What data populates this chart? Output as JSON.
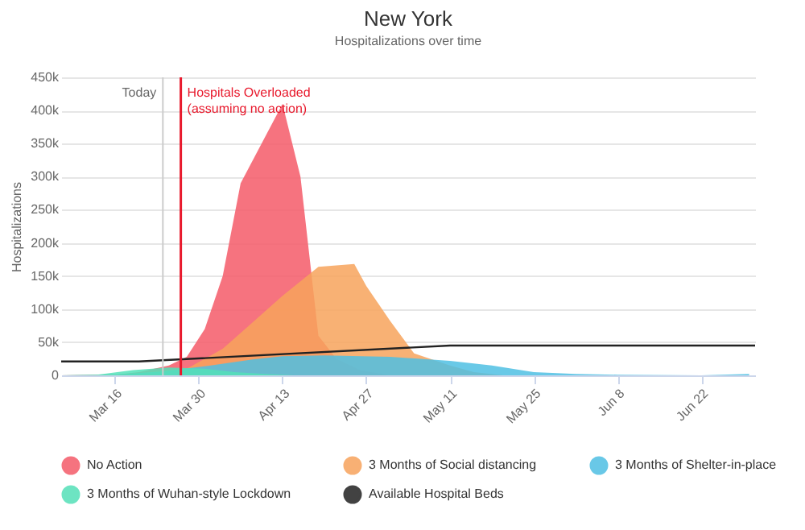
{
  "chart_data": {
    "type": "area",
    "title": "New York",
    "subtitle": "Hospitalizations over time",
    "ylabel": "Hospitalizations",
    "xlim": [
      "--03-07",
      "--07-01"
    ],
    "xticks": [
      {
        "value": "--03-16",
        "label": "Mar 16"
      },
      {
        "value": "--03-30",
        "label": "Mar 30"
      },
      {
        "value": "--04-13",
        "label": "Apr 13"
      },
      {
        "value": "--04-27",
        "label": "Apr 27"
      },
      {
        "value": "--05-11",
        "label": "May 11"
      },
      {
        "value": "--05-25",
        "label": "May 25"
      },
      {
        "value": "--06-08",
        "label": "Jun 8"
      },
      {
        "value": "--06-22",
        "label": "Jun 22"
      }
    ],
    "ylim": [
      0,
      450000
    ],
    "yticks": [
      {
        "value": 0,
        "label": "0"
      },
      {
        "value": 50000,
        "label": "50k"
      },
      {
        "value": 100000,
        "label": "100k"
      },
      {
        "value": 150000,
        "label": "150k"
      },
      {
        "value": 200000,
        "label": "200k"
      },
      {
        "value": 250000,
        "label": "250k"
      },
      {
        "value": 300000,
        "label": "300k"
      },
      {
        "value": 350000,
        "label": "350k"
      },
      {
        "value": 400000,
        "label": "400k"
      },
      {
        "value": 450000,
        "label": "450k"
      }
    ],
    "grid": "y",
    "legend": "bottom",
    "series": [
      {
        "name": "No Action",
        "color": "#f45b69",
        "x": [
          "--03-07",
          "--03-16",
          "--03-20",
          "--03-25",
          "--03-28",
          "--03-31",
          "--04-03",
          "--04-06",
          "--04-13",
          "--04-16",
          "--04-19",
          "--04-22",
          "--04-26",
          "--05-01"
        ],
        "values": [
          0,
          1000,
          5000,
          15000,
          28000,
          70000,
          150000,
          290000,
          410000,
          300000,
          60000,
          25000,
          8000,
          0
        ]
      },
      {
        "name": "3 Months of Social distancing",
        "color": "#f7a35c",
        "x": [
          "--03-07",
          "--03-16",
          "--03-22",
          "--03-28",
          "--04-03",
          "--04-08",
          "--04-13",
          "--04-19",
          "--04-25",
          "--04-27",
          "--05-01",
          "--05-05",
          "--05-11",
          "--05-15",
          "--05-20"
        ],
        "values": [
          0,
          1000,
          5000,
          10000,
          40000,
          80000,
          120000,
          164000,
          168000,
          135000,
          82000,
          33000,
          15000,
          5000,
          0
        ]
      },
      {
        "name": "3 Months of Shelter-in-place",
        "color": "#4fbfe3",
        "x": [
          "--03-07",
          "--03-16",
          "--03-24",
          "--04-01",
          "--04-08",
          "--04-13",
          "--04-20",
          "--05-01",
          "--05-11",
          "--05-18",
          "--05-25",
          "--06-01",
          "--06-08",
          "--06-22",
          "--06-30"
        ],
        "values": [
          0,
          1000,
          6000,
          15000,
          24000,
          29000,
          30000,
          28000,
          22000,
          15000,
          5000,
          2000,
          1000,
          0,
          2000
        ]
      },
      {
        "name": "3 Months of Wuhan-style Lockdown",
        "color": "#54e0b8",
        "x": [
          "--03-07",
          "--03-13",
          "--03-19",
          "--03-25",
          "--03-31",
          "--04-05",
          "--04-10",
          "--04-15"
        ],
        "values": [
          0,
          1000,
          8000,
          12000,
          10000,
          5000,
          2000,
          0
        ]
      },
      {
        "name": "Available Hospital Beds",
        "type": "line",
        "color": "#222222",
        "x": [
          "--03-07",
          "--03-20",
          "--05-11",
          "--07-01"
        ],
        "values": [
          21000,
          21000,
          45000,
          45000
        ]
      }
    ],
    "ref_lines": [
      {
        "axis": "x",
        "value": "--03-24",
        "label": "Today",
        "color": "#cccccc"
      },
      {
        "axis": "x",
        "value": "--03-27",
        "label": "Hospitals Overloaded (assuming no action)",
        "color": "#e8192c"
      }
    ]
  }
}
